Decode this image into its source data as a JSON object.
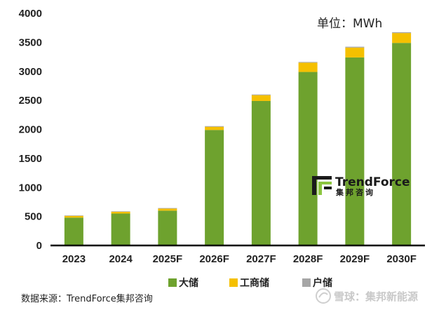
{
  "chart_data": {
    "type": "bar",
    "stacked": true,
    "unit_label": "单位：MWh",
    "categories": [
      "2023",
      "2024",
      "2025F",
      "2026F",
      "2027F",
      "2028F",
      "2029F",
      "2030F"
    ],
    "series": [
      {
        "name": "大储",
        "color": "#6ea22e",
        "values": [
          480,
          550,
          600,
          1990,
          2490,
          2990,
          3240,
          3490
        ]
      },
      {
        "name": "工商储",
        "color": "#f5c000",
        "values": [
          30,
          30,
          35,
          55,
          100,
          160,
          170,
          170
        ]
      },
      {
        "name": "户储",
        "color": "#a6a6a6",
        "values": [
          8,
          8,
          10,
          12,
          12,
          12,
          15,
          15
        ]
      }
    ],
    "ylim": [
      0,
      4000
    ],
    "yticks": [
      0,
      500,
      1000,
      1500,
      2000,
      2500,
      3000,
      3500,
      4000
    ],
    "legend_position": "bottom",
    "source": "数据来源：TrendForce集邦咨询"
  },
  "logo": {
    "name": "TrendForce",
    "sub": "集邦咨询"
  },
  "watermark": "雪球：集邦新能源"
}
